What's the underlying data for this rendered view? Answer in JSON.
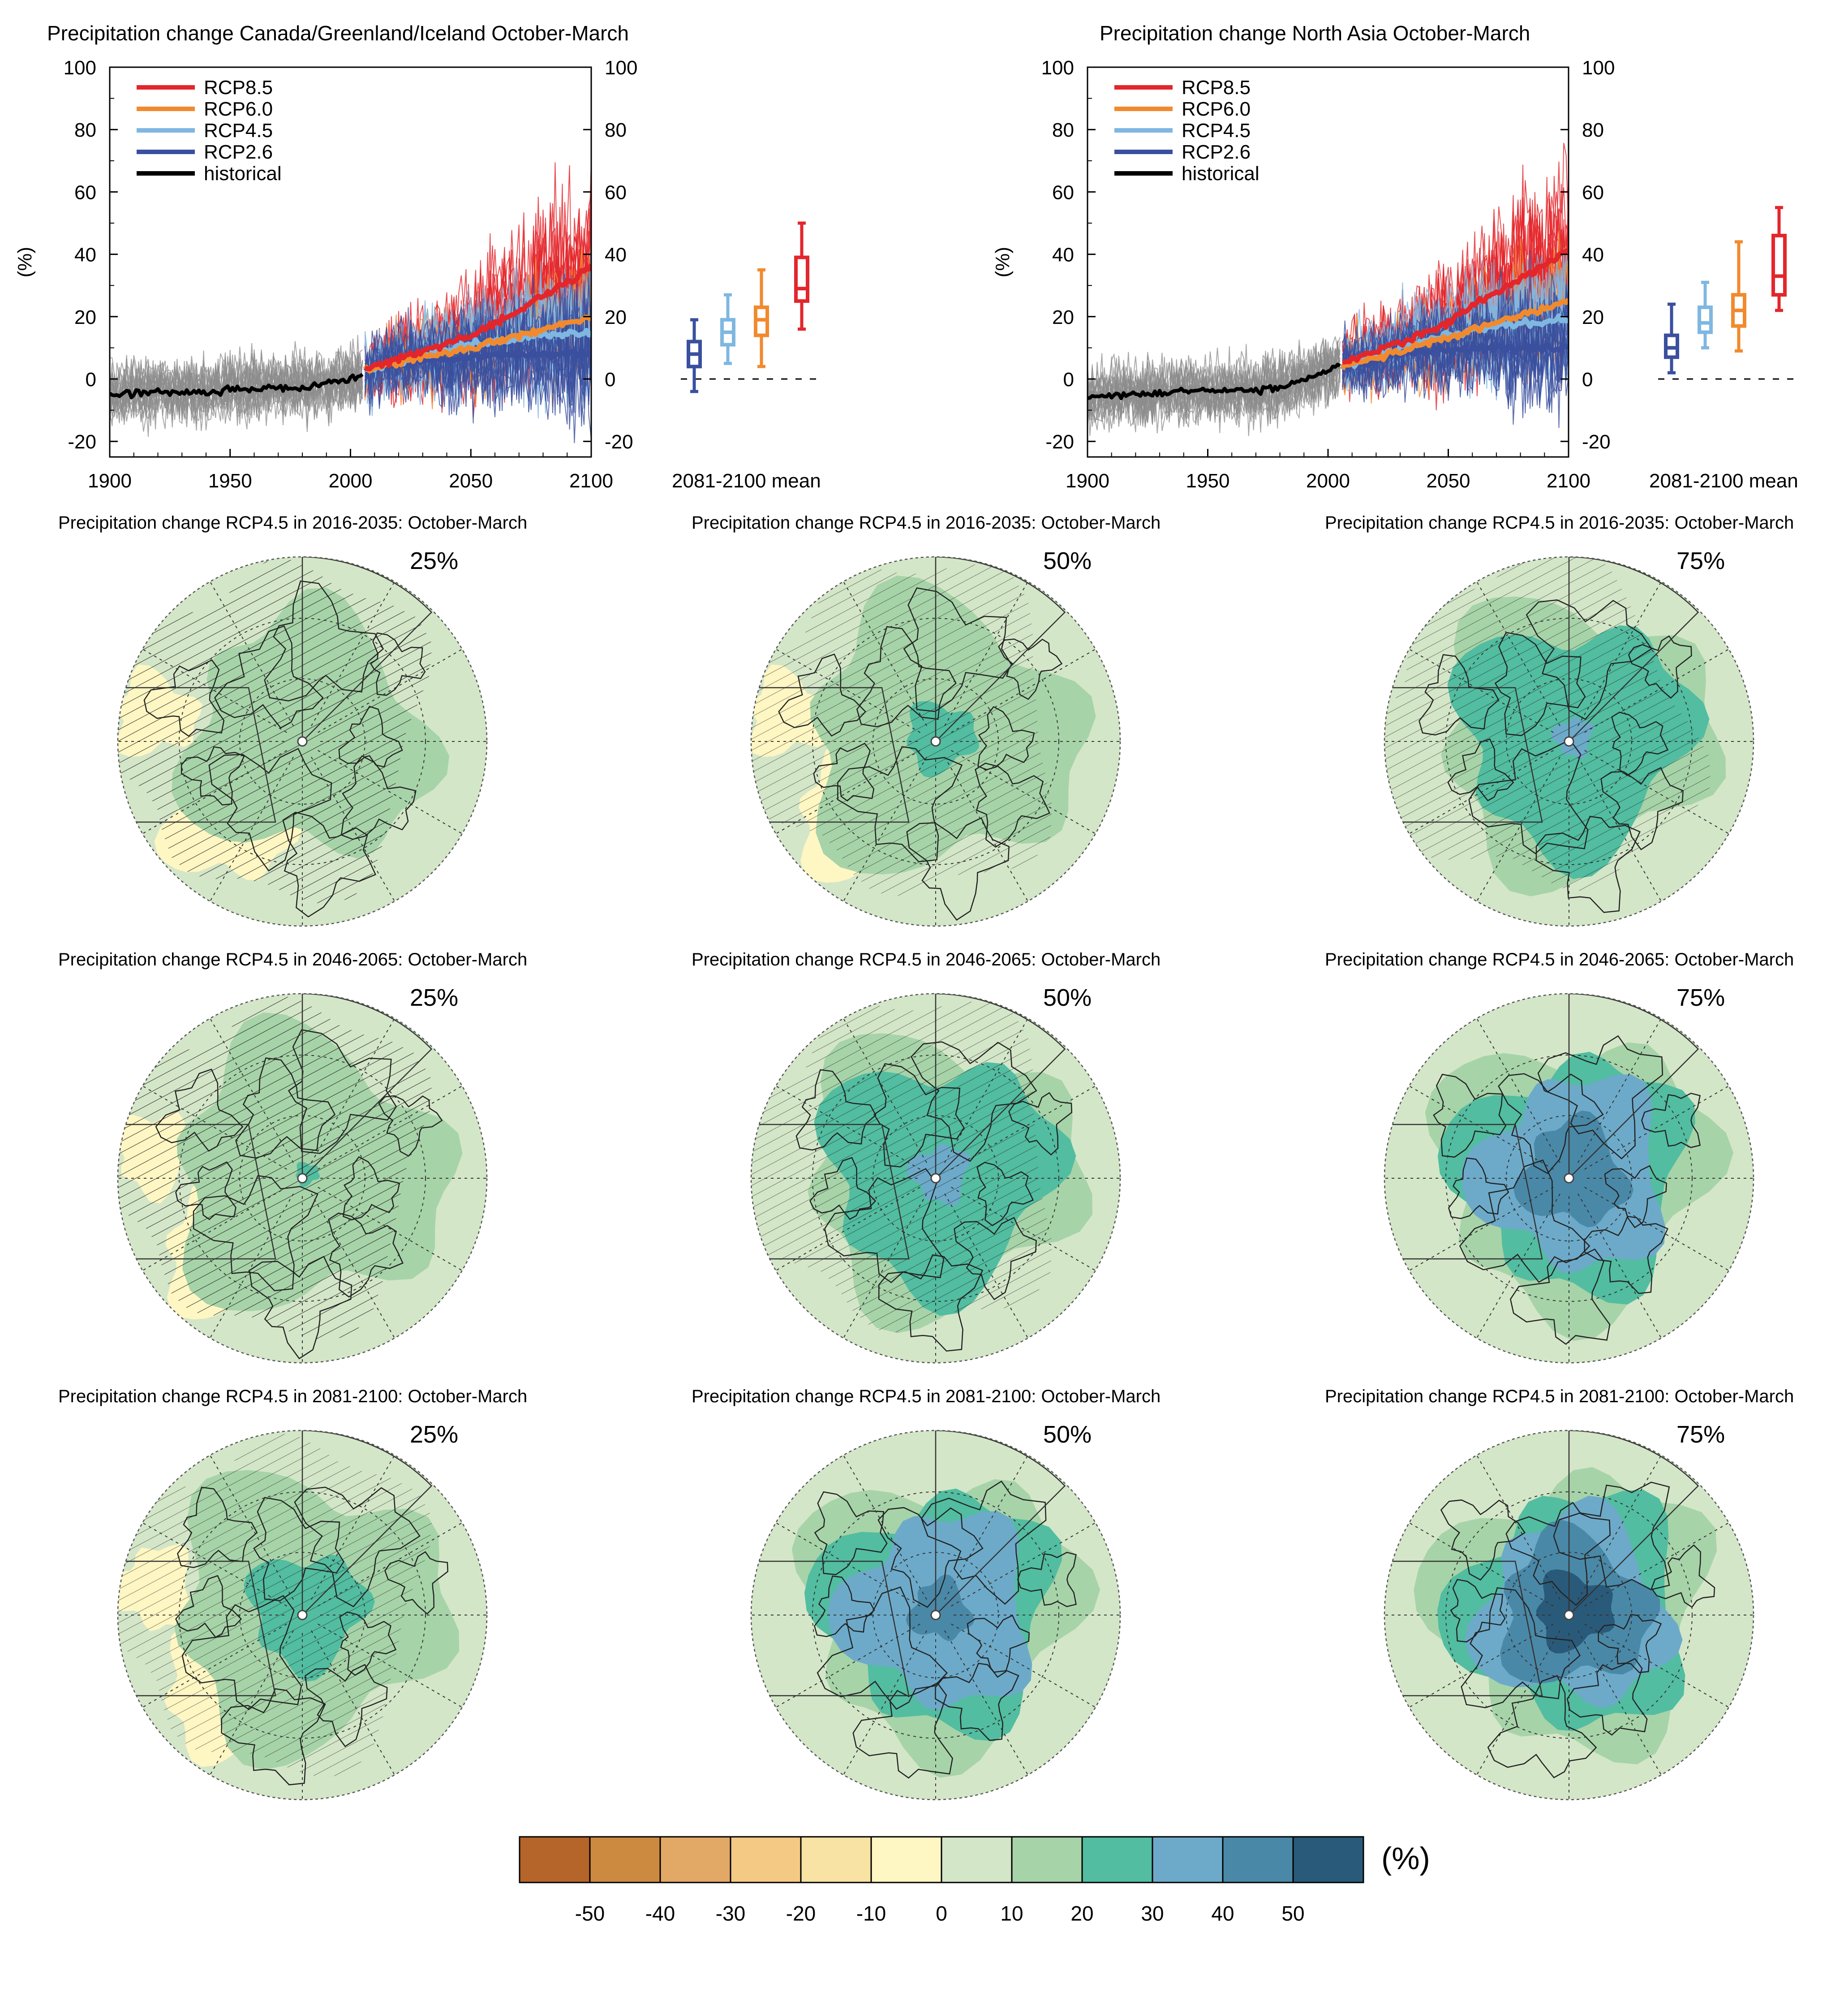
{
  "colors": {
    "rcp85": "#e3262b",
    "rcp60": "#f18a2e",
    "rcp45": "#7fb7e1",
    "rcp26": "#3a4f9e",
    "historical": "#000000",
    "hist_spread": "#8c8c8c"
  },
  "timeseries": [
    {
      "title": "Precipitation change Canada/Greenland/Iceland October-March",
      "ylabel": "(%)",
      "mean_label": "2081-2100 mean",
      "legend": [
        "RCP8.5",
        "RCP6.0",
        "RCP4.5",
        "RCP2.6",
        "historical"
      ],
      "y_ticks": [
        "100",
        "80",
        "60",
        "40",
        "20",
        "0",
        "-20"
      ],
      "x_ticks": [
        "1900",
        "1950",
        "2000",
        "2050",
        "2100"
      ],
      "yaxis_right": true
    },
    {
      "title": "Precipitation change North Asia October-March",
      "ylabel": "(%)",
      "mean_label": "2081-2100 mean",
      "legend": [
        "RCP8.5",
        "RCP6.0",
        "RCP4.5",
        "RCP2.6",
        "historical"
      ],
      "y_ticks": [
        "100",
        "80",
        "60",
        "40",
        "20",
        "0",
        "-20"
      ],
      "x_ticks": [
        "1900",
        "1950",
        "2000",
        "2050",
        "2100"
      ],
      "yaxis_right": true
    }
  ],
  "chart_data": [
    {
      "type": "line",
      "title": "Precipitation change Canada/Greenland/Iceland October-March",
      "xlabel": "",
      "ylabel": "(%)",
      "xlim": [
        1900,
        2100
      ],
      "ylim": [
        -25,
        100
      ],
      "legend_position": "top-left",
      "series": [
        {
          "name": "historical",
          "x": [
            1900,
            1920,
            1940,
            1960,
            1980,
            2005
          ],
          "values": [
            -5,
            -4,
            -4,
            -3,
            -3,
            1
          ]
        },
        {
          "name": "RCP2.6",
          "x": [
            2006,
            2030,
            2050,
            2070,
            2100
          ],
          "values": [
            3,
            6,
            7,
            8,
            8
          ]
        },
        {
          "name": "RCP4.5",
          "x": [
            2006,
            2030,
            2050,
            2070,
            2100
          ],
          "values": [
            3,
            8,
            11,
            13,
            15
          ]
        },
        {
          "name": "RCP6.0",
          "x": [
            2006,
            2030,
            2050,
            2070,
            2100
          ],
          "values": [
            3,
            7,
            10,
            14,
            20
          ]
        },
        {
          "name": "RCP8.5",
          "x": [
            2006,
            2030,
            2050,
            2070,
            2100
          ],
          "values": [
            3,
            9,
            14,
            22,
            36
          ]
        }
      ],
      "boxes": [
        {
          "name": "RCP2.6",
          "min": -4,
          "p25": 4,
          "median": 8,
          "p75": 12,
          "max": 19
        },
        {
          "name": "RCP4.5",
          "min": 5,
          "p25": 11,
          "median": 15,
          "p75": 19,
          "max": 27
        },
        {
          "name": "RCP6.0",
          "min": 4,
          "p25": 14,
          "median": 19,
          "p75": 23,
          "max": 35
        },
        {
          "name": "RCP8.5",
          "min": 16,
          "p25": 25,
          "median": 29,
          "p75": 39,
          "max": 50
        }
      ]
    },
    {
      "type": "line",
      "title": "Precipitation change North Asia October-March",
      "xlabel": "",
      "ylabel": "(%)",
      "xlim": [
        1900,
        2100
      ],
      "ylim": [
        -25,
        100
      ],
      "legend_position": "top-left",
      "series": [
        {
          "name": "historical",
          "x": [
            1900,
            1920,
            1940,
            1960,
            1980,
            2005
          ],
          "values": [
            -6,
            -5,
            -4,
            -4,
            -3,
            4
          ]
        },
        {
          "name": "RCP2.6",
          "x": [
            2006,
            2030,
            2050,
            2070,
            2100
          ],
          "values": [
            4,
            8,
            10,
            10,
            10
          ]
        },
        {
          "name": "RCP4.5",
          "x": [
            2006,
            2030,
            2050,
            2070,
            2100
          ],
          "values": [
            4,
            10,
            14,
            17,
            19
          ]
        },
        {
          "name": "RCP6.0",
          "x": [
            2006,
            2030,
            2050,
            2070,
            2100
          ],
          "values": [
            4,
            9,
            13,
            18,
            25
          ]
        },
        {
          "name": "RCP8.5",
          "x": [
            2006,
            2030,
            2050,
            2070,
            2100
          ],
          "values": [
            5,
            12,
            18,
            28,
            41
          ]
        }
      ],
      "boxes": [
        {
          "name": "RCP2.6",
          "min": 2,
          "p25": 7,
          "median": 10,
          "p75": 14,
          "max": 24
        },
        {
          "name": "RCP4.5",
          "min": 10,
          "p25": 15,
          "median": 18,
          "p75": 23,
          "max": 31
        },
        {
          "name": "RCP6.0",
          "min": 9,
          "p25": 17,
          "median": 22,
          "p75": 27,
          "max": 44
        },
        {
          "name": "RCP8.5",
          "min": 22,
          "p25": 27,
          "median": 33,
          "p75": 46,
          "max": 55
        }
      ]
    },
    {
      "type": "heatmap",
      "description_maps": "3x3 grid of polar projection maps; rows = periods, columns = percentiles",
      "rows": [
        {
          "title": "Precipitation change RCP4.5 in 2016-2035: October-March"
        },
        {
          "title": "Precipitation change RCP4.5 in 2046-2065: October-March"
        },
        {
          "title": "Precipitation change RCP4.5 in 2081-2100: October-March"
        }
      ],
      "columns": [
        "25%",
        "50%",
        "75%"
      ],
      "levels": [
        [
          0.9,
          1.3,
          2.2
        ],
        [
          1.1,
          2.3,
          3.7
        ],
        [
          1.5,
          3.4,
          4.7
        ]
      ],
      "colorbar": {
        "unit": "(%)",
        "tick_labels": [
          "-50",
          "-40",
          "-30",
          "-20",
          "-10",
          "0",
          "10",
          "20",
          "30",
          "40",
          "50"
        ],
        "colors": [
          "#b5642a",
          "#cc8a41",
          "#e2a866",
          "#f3c984",
          "#f8e2a4",
          "#fef6c3",
          "#d4e6c8",
          "#a7d3a8",
          "#52bda0",
          "#6daac9",
          "#4a88a7",
          "#2a5a7a"
        ]
      }
    }
  ]
}
